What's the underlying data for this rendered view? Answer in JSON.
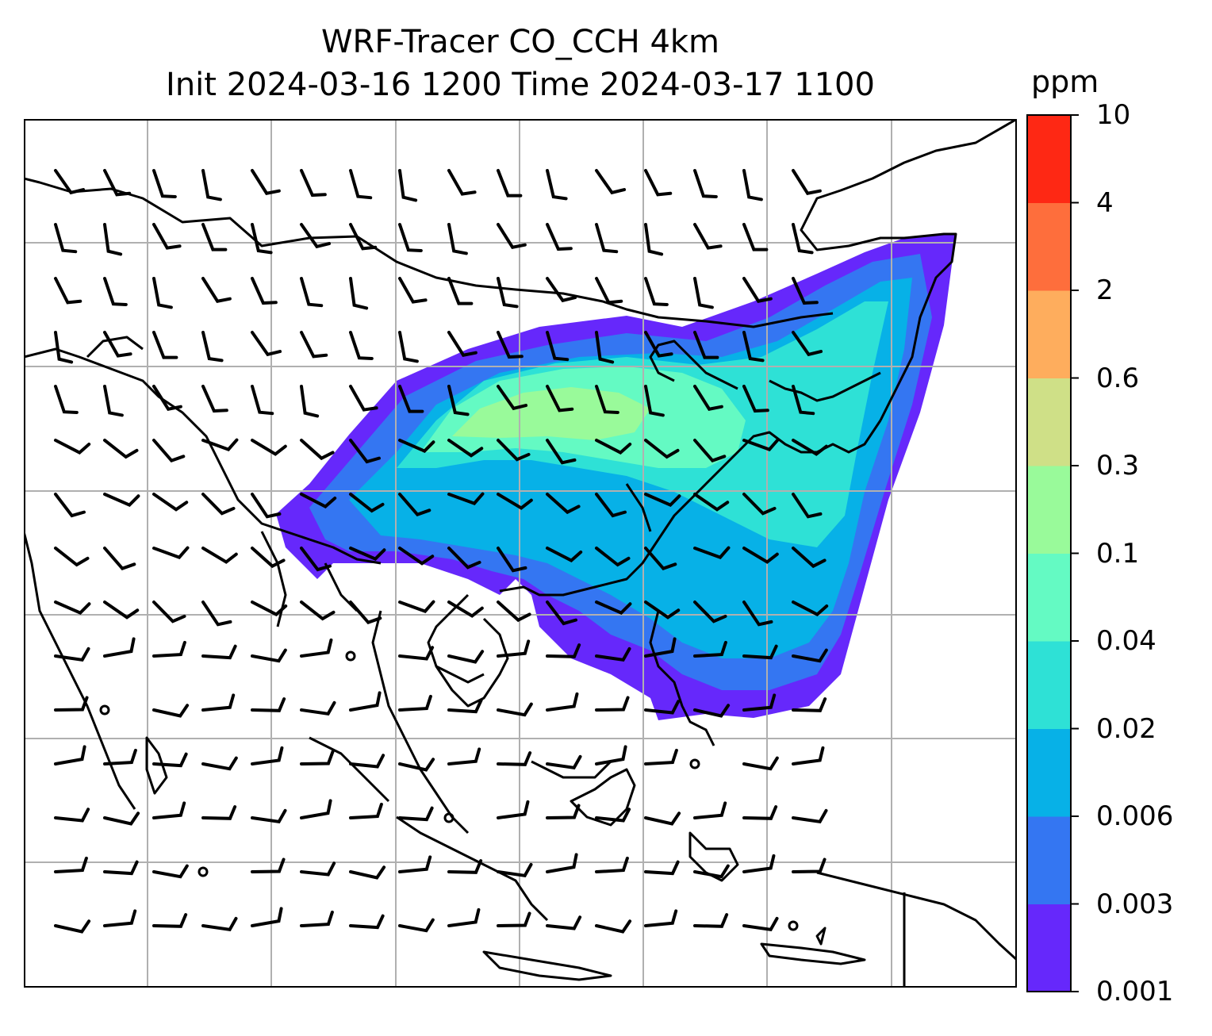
{
  "title": {
    "line1": "WRF-Tracer CO_CCH 4km",
    "line2": "Init 2024-03-16 1200 Time 2024-03-17 1100"
  },
  "colorbar": {
    "unit": "ppm",
    "levels": [
      "0.001",
      "0.003",
      "0.006",
      "0.02",
      "0.04",
      "0.1",
      "0.3",
      "0.6",
      "2",
      "4",
      "10"
    ],
    "colors": [
      "#6628fb",
      "#3476f2",
      "#07b1e7",
      "#2ee1d6",
      "#64fac3",
      "#99fa9a",
      "#cfe087",
      "#fead5d",
      "#fe6e3c",
      "#fe2814"
    ]
  },
  "map": {
    "grid": true,
    "grid_color": "#b0b0b0",
    "wind_barbs": true
  }
}
